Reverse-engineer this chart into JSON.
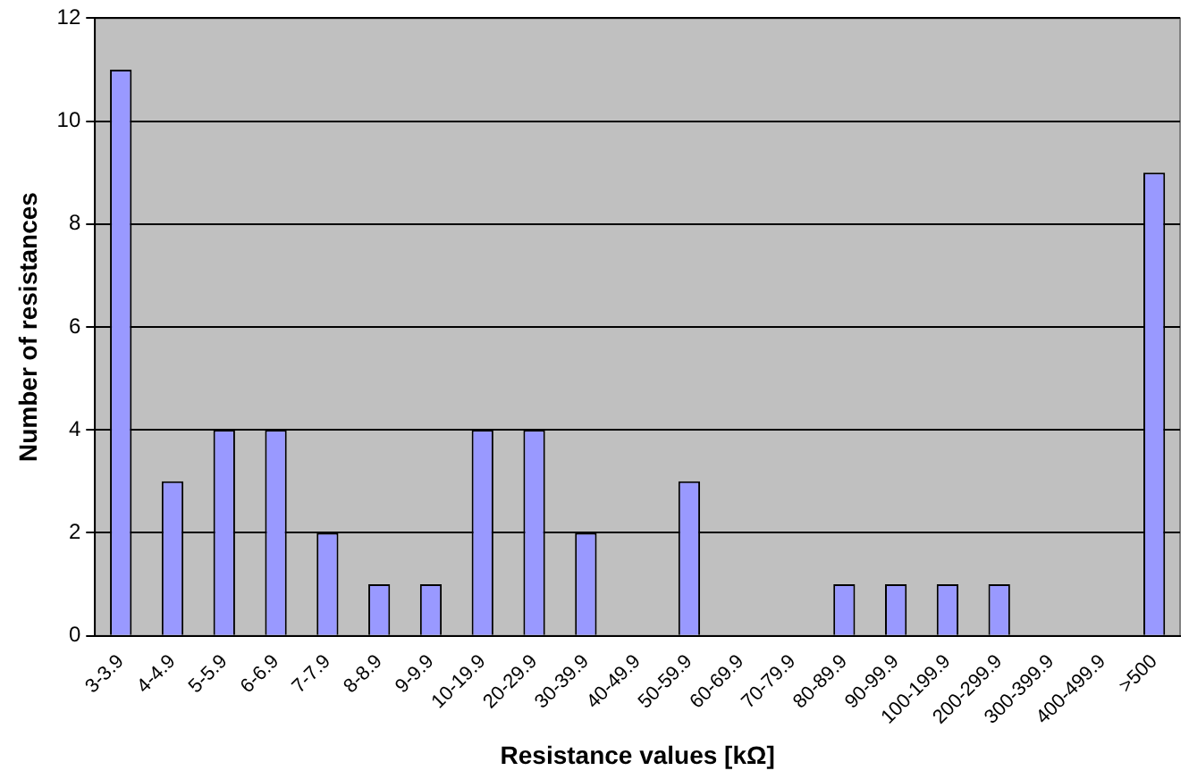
{
  "chart_data": {
    "type": "bar",
    "xlabel": "Resistance values [kΩ]",
    "ylabel": "Number of resistances",
    "categories": [
      "3-3.9",
      "4-4.9",
      "5-5.9",
      "6-6.9",
      "7-7.9",
      "8-8.9",
      "9-9.9",
      "10-19.9",
      "20-29.9",
      "30-39.9",
      "40-49.9",
      "50-59.9",
      "60-69.9",
      "70-79.9",
      "80-89.9",
      "90-99.9",
      "100-199.9",
      "200-299.9",
      "300-399.9",
      "400-499.9",
      ">500"
    ],
    "values": [
      11,
      3,
      4,
      4,
      2,
      1,
      1,
      4,
      4,
      2,
      0,
      3,
      0,
      0,
      1,
      1,
      1,
      1,
      0,
      0,
      9
    ],
    "color": "#9999ff",
    "ylim": [
      0,
      12
    ],
    "yticks": [
      0,
      2,
      4,
      6,
      8,
      10,
      12
    ],
    "grid": "y",
    "legend": false
  }
}
